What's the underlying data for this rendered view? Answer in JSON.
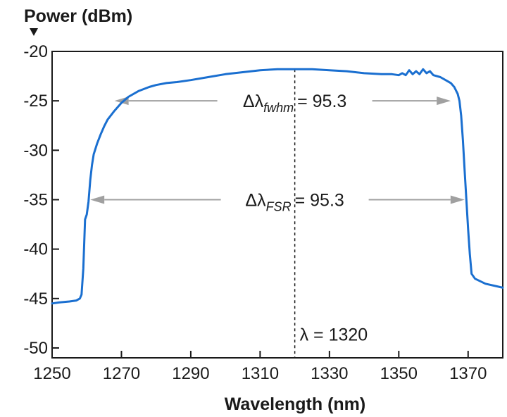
{
  "chart_data": {
    "type": "line",
    "title": "",
    "ylabel": "Power (dBm)",
    "xlabel": "Wavelength (nm)",
    "xlim": [
      1250,
      1380
    ],
    "ylim": [
      -51,
      -20
    ],
    "x_ticks": [
      1250,
      1270,
      1290,
      1310,
      1330,
      1350,
      1370
    ],
    "y_ticks": [
      -20,
      -25,
      -30,
      -35,
      -40,
      -45,
      -50
    ],
    "grid": false,
    "line_color": "#1a6fd0",
    "annotation_color": "#a0a0a0",
    "series": [
      {
        "x": [
          1250,
          1252,
          1255,
          1257,
          1258,
          1258.5,
          1259,
          1259.5,
          1260,
          1260.5,
          1261,
          1261.5,
          1262,
          1263,
          1264,
          1265,
          1266,
          1268,
          1270,
          1272,
          1275,
          1278,
          1280,
          1283,
          1286,
          1290,
          1295,
          1300,
          1305,
          1310,
          1315,
          1320,
          1325,
          1330,
          1335,
          1340,
          1345,
          1348,
          1350,
          1351,
          1352,
          1353,
          1354,
          1355,
          1356,
          1357,
          1358,
          1359,
          1360,
          1362,
          1364,
          1365,
          1366,
          1367,
          1367.5,
          1368,
          1368.5,
          1369,
          1369.5,
          1370,
          1370.5,
          1371,
          1372,
          1375,
          1380
        ],
        "y": [
          -45.5,
          -45.4,
          -45.3,
          -45.2,
          -45.0,
          -44.6,
          -42.0,
          -37.0,
          -36.5,
          -35.2,
          -33.0,
          -31.5,
          -30.4,
          -29.3,
          -28.4,
          -27.6,
          -26.9,
          -26.0,
          -25.2,
          -24.6,
          -24.0,
          -23.6,
          -23.4,
          -23.2,
          -23.1,
          -22.9,
          -22.6,
          -22.3,
          -22.1,
          -21.9,
          -21.8,
          -21.8,
          -21.8,
          -21.9,
          -22.0,
          -22.2,
          -22.3,
          -22.3,
          -22.4,
          -22.2,
          -22.4,
          -21.9,
          -22.3,
          -22.0,
          -22.3,
          -21.8,
          -22.2,
          -22.0,
          -22.4,
          -22.6,
          -23.0,
          -23.2,
          -23.6,
          -24.3,
          -25.0,
          -26.5,
          -29.0,
          -32.0,
          -35.0,
          -38.0,
          -40.5,
          -42.5,
          -43.0,
          -43.5,
          -43.9
        ]
      }
    ],
    "annotations": {
      "fwhm": {
        "prefix": "Δλ",
        "sub": "fwhm",
        "value": "= 95.3",
        "y": -25,
        "x_start": 1268,
        "x_end": 1365
      },
      "fsr": {
        "prefix": "Δλ",
        "sub": "FSR",
        "value": "= 95.3",
        "y": -35,
        "x_start": 1261,
        "x_end": 1369
      },
      "center": {
        "label": "λ = 1320",
        "x": 1320
      }
    }
  }
}
